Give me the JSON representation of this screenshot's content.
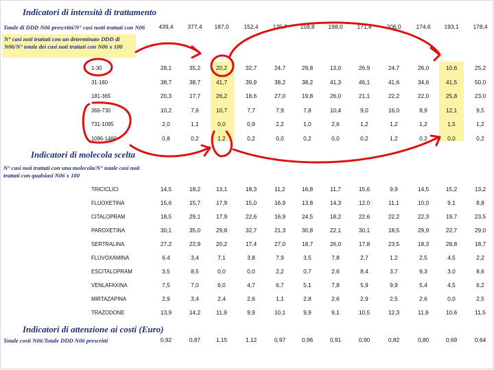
{
  "sections": {
    "intensity": {
      "title": "Indicatori di intensità di trattamento",
      "total_label": "Totale di DDD N06 prescritti/N° casi notti trattati con N06",
      "total_values": [
        "439,4",
        "377,4",
        "187,0",
        "152,4",
        "175,7",
        "159,8",
        "198,0",
        "171,4",
        "206,0",
        "174,6",
        "193,1",
        "178,4"
      ],
      "desc": "N° casi noti trattati con un determinato DDD di N06/N° totale dei casi noti trattati con N06 x 100",
      "rows": [
        {
          "label": "1-30",
          "values": [
            "28,1",
            "35,2",
            "20,2",
            "32,7",
            "24,7",
            "29,8",
            "13,0",
            "26,9",
            "24,7",
            "26,0",
            "10,6",
            "25,2"
          ]
        },
        {
          "label": "31-180",
          "values": [
            "38,7",
            "38,7",
            "41,7",
            "39,9",
            "38,2",
            "38,2",
            "41,3",
            "46,1",
            "41,6",
            "34,6",
            "41,5",
            "50,0"
          ]
        },
        {
          "label": "181-365",
          "values": [
            "20,3",
            "17,7",
            "26,2",
            "18,6",
            "27,0",
            "19,8",
            "26,0",
            "21,1",
            "22,2",
            "22,0",
            "25,8",
            "23,0"
          ]
        },
        {
          "label": "366-730",
          "values": [
            "10,2",
            "7,6",
            "10,7",
            "7,7",
            "7,9",
            "7,8",
            "10,4",
            "9,0",
            "16,0",
            "8,9",
            "12,1",
            "9,5"
          ]
        },
        {
          "label": "731-1095",
          "values": [
            "2,0",
            "1,1",
            "0,0",
            "0,9",
            "2,2",
            "1,0",
            "2,6",
            "1,2",
            "1,2",
            "1,2",
            "1,5",
            "1,2"
          ]
        },
        {
          "label": "1096-1460",
          "values": [
            "0,8",
            "0,2",
            "1,2",
            "0,2",
            "0,0",
            "0,2",
            "0,0",
            "0,2",
            "1,2",
            "0,2",
            "0,0",
            "0,2"
          ]
        }
      ]
    },
    "molecule": {
      "title": "Indicatori di molecola scelta",
      "desc": "N° casi noti trattati con una molecola/N° totale casi noti trattati con qualsiasi N06 x 100",
      "rows": [
        {
          "label": "TRICICLICI",
          "values": [
            "14,5",
            "18,2",
            "13,1",
            "18,3",
            "11,2",
            "16,8",
            "11,7",
            "15,6",
            "9,9",
            "14,5",
            "15,2",
            "13,2"
          ]
        },
        {
          "label": "FLUOXETINA",
          "values": [
            "15,6",
            "15,7",
            "17,9",
            "15,0",
            "16,9",
            "13,8",
            "14,3",
            "12,0",
            "11,1",
            "10,0",
            "9,1",
            "8,8"
          ]
        },
        {
          "label": "CITALOPRAM",
          "values": [
            "18,5",
            "29,1",
            "17,9",
            "22,6",
            "16,9",
            "24,5",
            "18,2",
            "22,6",
            "22,2",
            "22,3",
            "19,7",
            "23,5"
          ]
        },
        {
          "label": "PAROXETINA",
          "values": [
            "30,1",
            "35,0",
            "29,8",
            "32,7",
            "21,3",
            "30,8",
            "22,1",
            "30,1",
            "18,5",
            "29,9",
            "22,7",
            "29,0"
          ]
        },
        {
          "label": "SERTRALINA",
          "values": [
            "27,2",
            "22,9",
            "20,2",
            "17,4",
            "27,0",
            "18,7",
            "26,0",
            "17,8",
            "23,5",
            "18,3",
            "28,8",
            "18,7"
          ]
        },
        {
          "label": "FLUVOXAMINA",
          "values": [
            "6,4",
            "3,4",
            "7,1",
            "3,8",
            "7,9",
            "3,5",
            "7,8",
            "2,7",
            "1,2",
            "2,5",
            "4,5",
            "2,2"
          ]
        },
        {
          "label": "ESCITALOPRAM",
          "values": [
            "3,5",
            "8,5",
            "0,0",
            "0,0",
            "2,2",
            "0,7",
            "2,6",
            "8,4",
            "3,7",
            "9,3",
            "3,0",
            "8,6"
          ]
        },
        {
          "label": "VENLAFAXINA",
          "values": [
            "7,5",
            "7,0",
            "6,0",
            "4,7",
            "6,7",
            "5,1",
            "7,8",
            "5,9",
            "9,9",
            "5,4",
            "4,5",
            "6,2"
          ]
        },
        {
          "label": "MIRTAZAPINA",
          "values": [
            "2,9",
            "3,4",
            "2,4",
            "2,6",
            "1,1",
            "2,8",
            "2,6",
            "2,9",
            "2,5",
            "2,6",
            "0,0",
            "2,5"
          ]
        },
        {
          "label": "TRAZODONE",
          "values": [
            "13,9",
            "14,2",
            "11,9",
            "9,9",
            "10,1",
            "9,9",
            "9,1",
            "10,5",
            "12,3",
            "11,6",
            "10,6",
            "11,5"
          ]
        }
      ]
    },
    "costs": {
      "title": "Indicatori di attenzione ai costi (Euro)",
      "total_label": "Totale costi N06/Totale DDD N06 prescritti",
      "values": [
        "0,92",
        "0,87",
        "1,15",
        "1,12",
        "0,97",
        "0,96",
        "0,91",
        "0,90",
        "0,82",
        "0,80",
        "0,69",
        "0,64"
      ]
    }
  },
  "colors": {
    "title": "#1f2f7a",
    "highlight": "#fbf3a6",
    "annotation": "#dd1111"
  }
}
